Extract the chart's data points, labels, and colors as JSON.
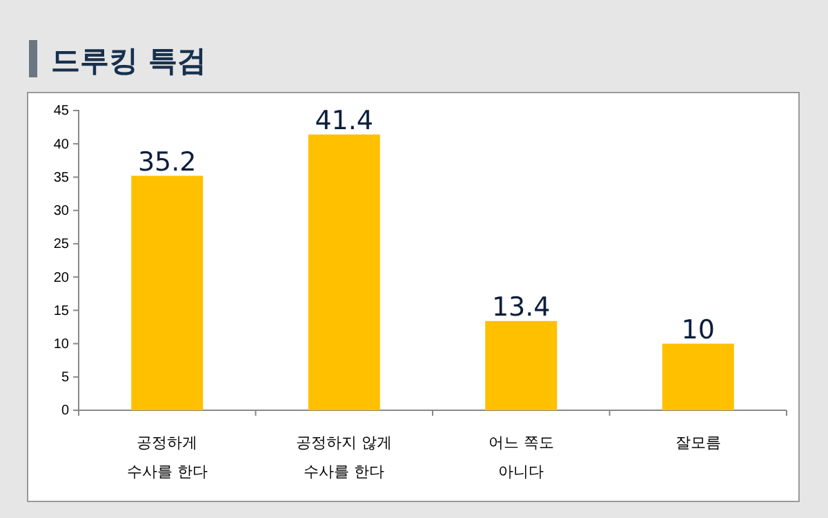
{
  "chart_data": {
    "type": "bar",
    "title": "드루킹 특검",
    "categories": [
      "공정하게\n수사를 한다",
      "공정하지 않게\n수사를 한다",
      "어느 쪽도\n아니다",
      "잘모름"
    ],
    "values": [
      35.2,
      41.4,
      13.4,
      10
    ],
    "color": "#ffc000",
    "data_labels": true,
    "ylim": [
      0,
      45
    ],
    "yticks": [
      0,
      5,
      10,
      15,
      20,
      25,
      30,
      35,
      40,
      45
    ],
    "grid": false
  }
}
